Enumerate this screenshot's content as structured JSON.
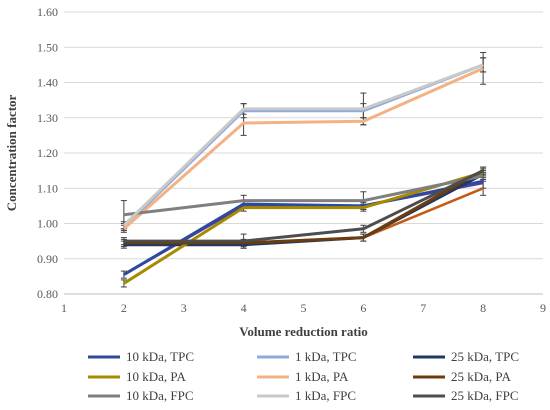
{
  "chart_data": {
    "type": "line",
    "title": "",
    "xlabel": "Volume reduction ratio",
    "ylabel": "Concentration factor",
    "xlim": [
      1,
      9
    ],
    "ylim": [
      0.8,
      1.6
    ],
    "x_ticks": [
      "1",
      "2",
      "3",
      "4",
      "5",
      "6",
      "7",
      "8",
      "9"
    ],
    "y_ticks": [
      "0.80",
      "0.90",
      "1.00",
      "1.10",
      "1.20",
      "1.30",
      "1.40",
      "1.50",
      "1.60"
    ],
    "grid": "horizontal",
    "legend_position": "bottom",
    "x": [
      2,
      4,
      6,
      8
    ],
    "series": [
      {
        "name": "10 kDa, TPC",
        "color": "#2e4a9e",
        "values": [
          0.855,
          1.055,
          1.05,
          1.12
        ],
        "error": [
          0.01,
          0.01,
          0.01,
          0.02
        ]
      },
      {
        "name": "1 kDa, TPC",
        "color": "#8ea9db",
        "values": [
          0.99,
          1.32,
          1.32,
          1.45
        ],
        "error": [
          0.01,
          0.02,
          0.02,
          0.02
        ]
      },
      {
        "name": "25 kDa, TPC",
        "color": "#1f3864",
        "values": [
          0.94,
          0.94,
          0.96,
          1.14
        ],
        "error": [
          0.01,
          0.01,
          0.01,
          0.01
        ]
      },
      {
        "name": "10 kDa, PA",
        "color": "#a68a00",
        "values": [
          0.83,
          1.045,
          1.045,
          1.145
        ],
        "error": [
          0.01,
          0.01,
          0.01,
          0.01
        ]
      },
      {
        "name": "1 kDa, PA",
        "color": "#f4b183",
        "values": [
          0.985,
          1.285,
          1.29,
          1.44
        ],
        "error": [
          0.01,
          0.035,
          0.01,
          0.045
        ]
      },
      {
        "name": "25 kDa, PA",
        "color": "#6b3d0c",
        "values": [
          0.945,
          0.945,
          0.96,
          1.15
        ],
        "error": [
          0.01,
          0.01,
          0.01,
          0.01
        ]
      },
      {
        "name": "10 kDa, FPC",
        "color": "#7f7f7f",
        "values": [
          1.025,
          1.065,
          1.065,
          1.135
        ],
        "error": [
          0.04,
          0.015,
          0.025,
          0.01
        ]
      },
      {
        "name": "1 kDa, FPC",
        "color": "#c9c9c9",
        "values": [
          0.995,
          1.325,
          1.325,
          1.45
        ],
        "error": [
          0.01,
          0.015,
          0.045,
          0.02
        ]
      },
      {
        "name": "25 kDa, FPC",
        "color": "#4d4d4d",
        "values": [
          0.95,
          0.95,
          0.985,
          1.15
        ],
        "error": [
          0.01,
          0.02,
          0.01,
          0.01
        ]
      }
    ],
    "extra_lines": [
      {
        "color": "#c55a11",
        "values": [
          0.945,
          0.945,
          0.96,
          1.1
        ],
        "error": [
          0.0,
          0.0,
          0.0,
          0.02
        ]
      },
      {
        "color": "#5b3ba5",
        "values": [
          0.855,
          1.05,
          1.05,
          1.115
        ],
        "error": [
          0.0,
          0.0,
          0.0,
          0.0
        ]
      }
    ]
  }
}
